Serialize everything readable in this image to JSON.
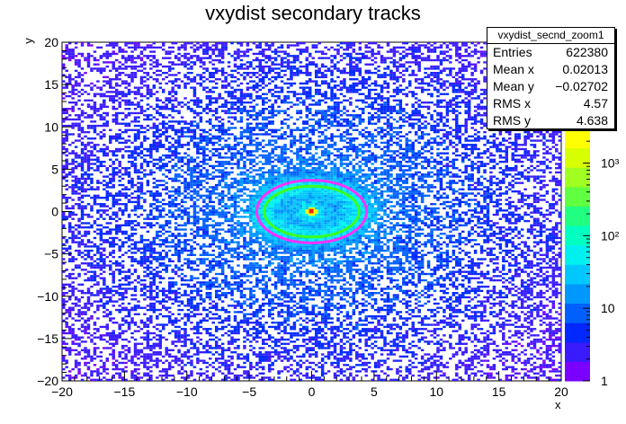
{
  "title": "vxydist secondary tracks",
  "stats_box": {
    "name": "vxydist_secnd_zoom1",
    "rows": [
      {
        "label": "Entries",
        "value": "622380"
      },
      {
        "label": "Mean x",
        "value": "0.02013"
      },
      {
        "label": "Mean y",
        "value": "−0.02702"
      },
      {
        "label": "RMS x",
        "value": "4.57"
      },
      {
        "label": "RMS y",
        "value": "4.638"
      }
    ]
  },
  "chart_data": {
    "type": "heatmap",
    "title": "vxydist secondary tracks",
    "xlabel": "x",
    "ylabel": "y",
    "xlim": [
      -20,
      20
    ],
    "ylim": [
      -20,
      20
    ],
    "x_ticks": [
      "−20",
      "−15",
      "−10",
      "−5",
      "0",
      "5",
      "10",
      "15",
      "20"
    ],
    "y_ticks": [
      "−20",
      "−15",
      "−10",
      "−5",
      "0",
      "5",
      "10",
      "15",
      "20"
    ],
    "z_scale": "log",
    "z_range": [
      1,
      3000
    ],
    "colorbar_ticks": [
      "1",
      "10",
      "10²",
      "10³"
    ],
    "peak": {
      "x": 0,
      "y": 0
    },
    "rings": [
      {
        "x_radius": 3.8,
        "y_radius": 3.0,
        "color": "green"
      },
      {
        "x_radius": 4.4,
        "y_radius": 3.7,
        "color": "magenta"
      }
    ],
    "grid": false
  }
}
